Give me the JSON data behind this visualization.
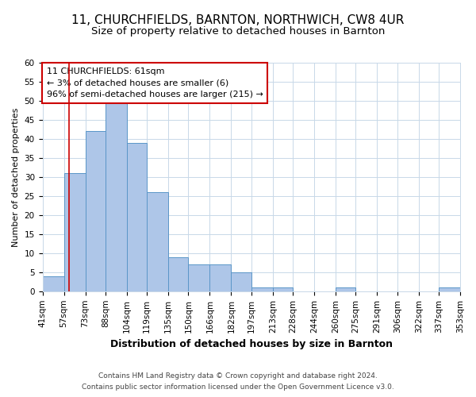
{
  "title_line1": "11, CHURCHFIELDS, BARNTON, NORTHWICH, CW8 4UR",
  "title_line2": "Size of property relative to detached houses in Barnton",
  "xlabel": "Distribution of detached houses by size in Barnton",
  "ylabel": "Number of detached properties",
  "bin_edges": [
    41,
    57,
    73,
    88,
    104,
    119,
    135,
    150,
    166,
    182,
    197,
    213,
    228,
    244,
    260,
    275,
    291,
    306,
    322,
    337,
    353
  ],
  "bar_heights": [
    4,
    31,
    42,
    50,
    39,
    26,
    9,
    7,
    7,
    5,
    1,
    1,
    0,
    0,
    1,
    0,
    0,
    0,
    0,
    1,
    0
  ],
  "bar_color": "#aec6e8",
  "bar_edge_color": "#5a96c8",
  "property_size": 61,
  "vline_color": "#cc0000",
  "annotation_line1": "11 CHURCHFIELDS: 61sqm",
  "annotation_line2": "← 3% of detached houses are smaller (6)",
  "annotation_line3": "96% of semi-detached houses are larger (215) →",
  "annotation_box_edge_color": "#cc0000",
  "ylim": [
    0,
    60
  ],
  "yticks": [
    0,
    5,
    10,
    15,
    20,
    25,
    30,
    35,
    40,
    45,
    50,
    55,
    60
  ],
  "footnote_line1": "Contains HM Land Registry data © Crown copyright and database right 2024.",
  "footnote_line2": "Contains public sector information licensed under the Open Government Licence v3.0.",
  "background_color": "#ffffff",
  "grid_color": "#c8d8e8",
  "tick_label_fontsize": 7.5,
  "title1_fontsize": 11,
  "title2_fontsize": 9.5,
  "xlabel_fontsize": 9,
  "ylabel_fontsize": 8,
  "annotation_fontsize": 8,
  "footnote_fontsize": 6.5
}
